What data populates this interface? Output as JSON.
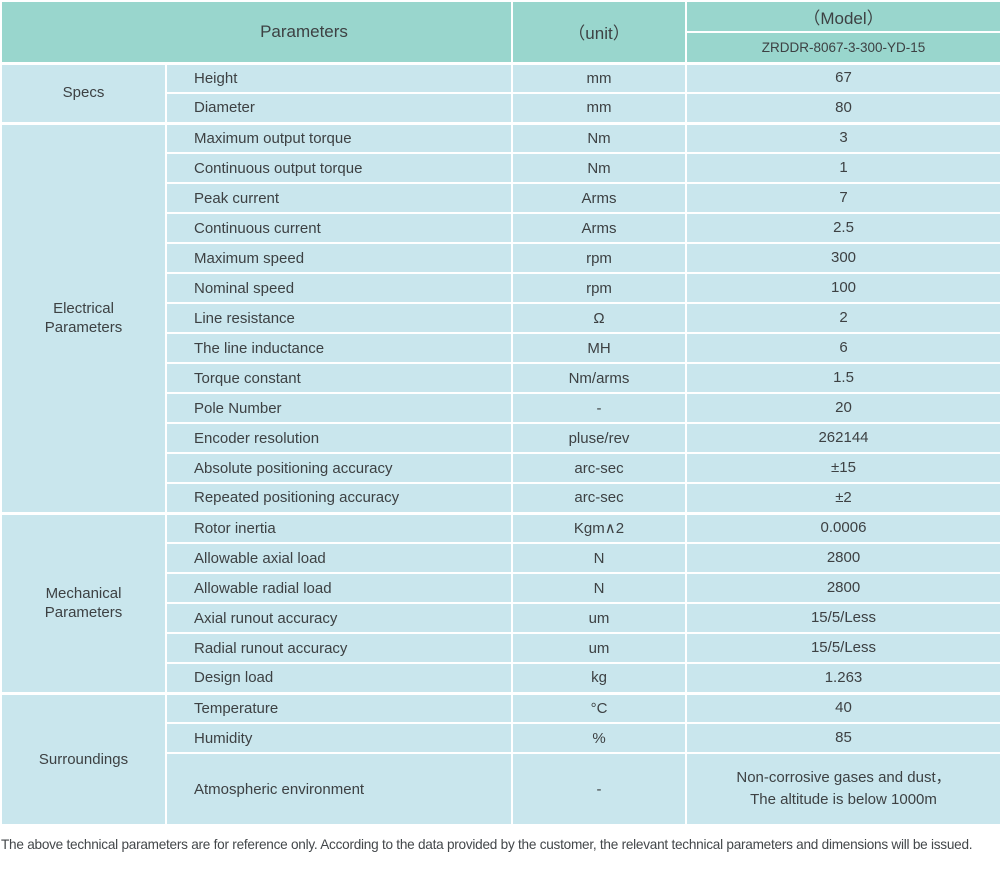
{
  "table": {
    "header": {
      "parameters_label": "Parameters",
      "unit_label": "（unit）",
      "model_label": "（Model）",
      "model_value": "ZRDDR-8067-3-300-YD-15"
    },
    "sections": [
      {
        "group": "Specs",
        "rows": [
          {
            "parameter": "Height",
            "unit": "mm",
            "value": "67"
          },
          {
            "parameter": "Diameter",
            "unit": "mm",
            "value": "80"
          }
        ]
      },
      {
        "group": "Electrical Parameters",
        "rows": [
          {
            "parameter": "Maximum output torque",
            "unit": "Nm",
            "value": "3"
          },
          {
            "parameter": "Continuous output torque",
            "unit": "Nm",
            "value": "1"
          },
          {
            "parameter": "Peak current",
            "unit": "Arms",
            "value": "7"
          },
          {
            "parameter": "Continuous current",
            "unit": "Arms",
            "value": "2.5"
          },
          {
            "parameter": "Maximum speed",
            "unit": "rpm",
            "value": "300"
          },
          {
            "parameter": "Nominal speed",
            "unit": "rpm",
            "value": "100"
          },
          {
            "parameter": "Line resistance",
            "unit": "Ω",
            "value": "2"
          },
          {
            "parameter": "The line inductance",
            "unit": "MH",
            "value": "6"
          },
          {
            "parameter": "Torque constant",
            "unit": "Nm/arms",
            "value": "1.5"
          },
          {
            "parameter": "Pole Number",
            "unit": "-",
            "value": "20"
          },
          {
            "parameter": "Encoder resolution",
            "unit": "pluse/rev",
            "value": "262144"
          },
          {
            "parameter": "Absolute positioning accuracy",
            "unit": "arc-sec",
            "value": "±15"
          },
          {
            "parameter": "Repeated positioning accuracy",
            "unit": "arc-sec",
            "value": "±2"
          }
        ]
      },
      {
        "group": "Mechanical Parameters",
        "rows": [
          {
            "parameter": "Rotor inertia",
            "unit": "Kgm∧2",
            "value": "0.0006"
          },
          {
            "parameter": "Allowable axial load",
            "unit": "N",
            "value": "2800"
          },
          {
            "parameter": "Allowable radial load",
            "unit": "N",
            "value": "2800"
          },
          {
            "parameter": "Axial runout accuracy",
            "unit": "um",
            "value": "15/5/Less"
          },
          {
            "parameter": "Radial runout accuracy",
            "unit": "um",
            "value": "15/5/Less"
          },
          {
            "parameter": "Design load",
            "unit": "kg",
            "value": "1.263"
          }
        ]
      },
      {
        "group": "Surroundings",
        "rows": [
          {
            "parameter": "Temperature",
            "unit": "°C",
            "value": "40"
          },
          {
            "parameter": "Humidity",
            "unit": "%",
            "value": "85"
          },
          {
            "parameter": "Atmospheric environment",
            "unit": "-",
            "value": "Non-corrosive gases and dust，\nThe altitude is below 1000m"
          }
        ]
      }
    ]
  },
  "footer": {
    "note": "The above technical parameters are for reference only. According to the data provided by the customer, the relevant technical parameters and dimensions will be issued."
  },
  "colors": {
    "header_bg": "#99d6cd",
    "row_bg": "#c9e6ed",
    "grid": "#ffffff",
    "text": "#3d4143"
  }
}
